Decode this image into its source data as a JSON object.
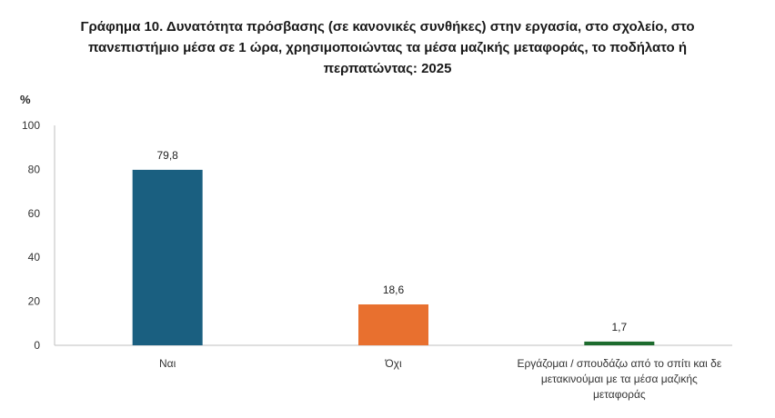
{
  "chart_data": {
    "type": "bar",
    "title_lines": [
      "Γράφημα 10. Δυνατότητα πρόσβασης (σε κανονικές συνθήκες) στην εργασία, στο σχολείο, στο",
      "πανεπιστήμιο μέσα σε 1 ώρα, χρησιμοποιώντας τα μέσα μαζικής μεταφοράς, το ποδήλατο ή",
      "περπατώντας: 2025"
    ],
    "ylabel": "%",
    "ylim": [
      0,
      100
    ],
    "yticks": [
      "0",
      "20",
      "40",
      "60",
      "80",
      "100"
    ],
    "grid": false,
    "categories": [
      "Ναι",
      "Όχι",
      "Εργάζομαι / σπουδάζω από το σπίτι και δε μετακινούμαι με τα μέσα μαζικής μεταφοράς"
    ],
    "category_lines": [
      [
        "Ναι"
      ],
      [
        "Όχι"
      ],
      [
        "Εργάζομαι / σπουδάζω από το σπίτι και δε",
        "μετακινούμαι με τα μέσα μαζικής",
        "μεταφοράς"
      ]
    ],
    "values": [
      79.8,
      18.6,
      1.7
    ],
    "value_labels": [
      "79,8",
      "18,6",
      "1,7"
    ],
    "colors": [
      "#1a5f80",
      "#e8702f",
      "#1d6b2e"
    ]
  }
}
